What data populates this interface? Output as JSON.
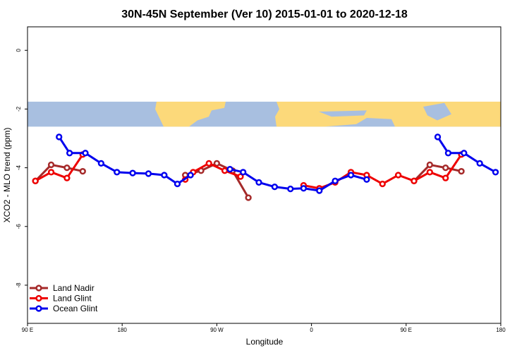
{
  "chart_data": {
    "type": "line",
    "title": "30N-45N September (Ver 10)   2015-01-01 to 2020-12-18",
    "xlabel": "Longitude",
    "ylabel": "XCO2 - MLO trend (ppm)",
    "xlim": [
      0,
      450
    ],
    "ylim": [
      -9.3,
      0.8
    ],
    "x_ticks": [
      {
        "value": 0,
        "label": "90 E"
      },
      {
        "value": 90,
        "label": "180"
      },
      {
        "value": 180,
        "label": "90 W"
      },
      {
        "value": 270,
        "label": "0"
      },
      {
        "value": 360,
        "label": "90 E"
      },
      {
        "value": 450,
        "label": "180"
      }
    ],
    "y_ticks": [
      {
        "value": 0,
        "label": "0"
      },
      {
        "value": -2,
        "label": "-2"
      },
      {
        "value": -4,
        "label": "-4"
      },
      {
        "value": -6,
        "label": "-6"
      },
      {
        "value": -8,
        "label": "-8"
      }
    ],
    "map_band": {
      "y_top": -1.75,
      "y_bottom": -2.6,
      "ocean_color": "#a8bfe0",
      "land_color": "#fcd97a"
    },
    "legend_position": "bottom-left",
    "series": [
      {
        "name": "Land Nadir",
        "color": "#a52a2a",
        "segments": [
          [
            [
              7.5,
              -4.45
            ],
            [
              22.5,
              -3.9
            ],
            [
              37.5,
              -4.0
            ],
            [
              52.5,
              -4.12
            ]
          ],
          [
            [
              150,
              -4.25
            ],
            [
              165,
              -4.1
            ],
            [
              180,
              -3.85
            ],
            [
              195,
              -4.1
            ],
            [
              210,
              -5.02
            ]
          ],
          [
            [
              367.5,
              -4.45
            ],
            [
              382.5,
              -3.9
            ],
            [
              397.5,
              -4.0
            ],
            [
              412.5,
              -4.12
            ]
          ]
        ]
      },
      {
        "name": "Land Glint",
        "color": "#ee0000",
        "segments": [
          [
            [
              7.5,
              -4.45
            ],
            [
              22.5,
              -4.15
            ],
            [
              37.5,
              -4.35
            ],
            [
              52.5,
              -3.55
            ]
          ],
          [
            [
              150,
              -4.4
            ],
            [
              157.5,
              -4.15
            ],
            [
              172.5,
              -3.85
            ],
            [
              187.5,
              -4.1
            ],
            [
              202.5,
              -4.3
            ]
          ],
          [
            [
              262.5,
              -4.6
            ],
            [
              277.5,
              -4.7
            ],
            [
              292.5,
              -4.5
            ],
            [
              307.5,
              -4.15
            ],
            [
              322.5,
              -4.25
            ],
            [
              337.5,
              -4.55
            ],
            [
              352.5,
              -4.25
            ],
            [
              367.5,
              -4.45
            ],
            [
              382.5,
              -4.15
            ],
            [
              397.5,
              -4.35
            ],
            [
              412.5,
              -3.55
            ]
          ]
        ]
      },
      {
        "name": "Ocean Glint",
        "color": "#0000ee",
        "segments": [
          [
            [
              30,
              -2.95
            ],
            [
              40,
              -3.5
            ],
            [
              55,
              -3.5
            ],
            [
              70,
              -3.85
            ],
            [
              85,
              -4.15
            ],
            [
              100,
              -4.18
            ],
            [
              115,
              -4.2
            ],
            [
              130,
              -4.25
            ],
            [
              142.5,
              -4.55
            ],
            [
              155,
              -4.25
            ]
          ],
          [
            [
              192.5,
              -4.05
            ],
            [
              205,
              -4.15
            ],
            [
              220,
              -4.5
            ],
            [
              235,
              -4.65
            ],
            [
              250,
              -4.72
            ],
            [
              262.5,
              -4.7
            ],
            [
              277.5,
              -4.78
            ],
            [
              292.5,
              -4.45
            ],
            [
              307.5,
              -4.25
            ],
            [
              322.5,
              -4.4
            ]
          ],
          [
            [
              390,
              -2.95
            ],
            [
              400,
              -3.5
            ],
            [
              415,
              -3.5
            ],
            [
              430,
              -3.85
            ],
            [
              445,
              -4.15
            ]
          ]
        ]
      }
    ]
  }
}
